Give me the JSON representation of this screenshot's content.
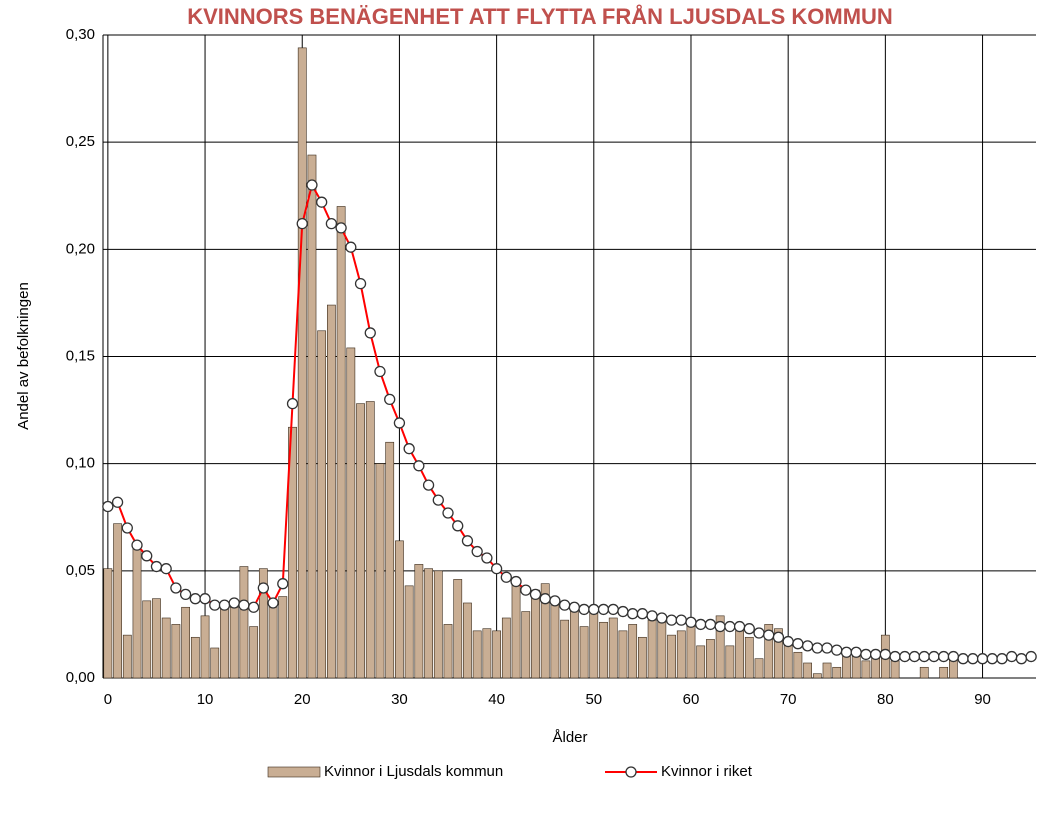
{
  "chart_data": {
    "type": "bar_line",
    "title": "KVINNORS BENÄGENHET ATT FLYTTA FRÅN LJUSDALS KOMMUN",
    "x_label": "Ålder",
    "y_label": "Andel av befolkningen",
    "x": [
      0,
      1,
      2,
      3,
      4,
      5,
      6,
      7,
      8,
      9,
      10,
      11,
      12,
      13,
      14,
      15,
      16,
      17,
      18,
      19,
      20,
      21,
      22,
      23,
      24,
      25,
      26,
      27,
      28,
      29,
      30,
      31,
      32,
      33,
      34,
      35,
      36,
      37,
      38,
      39,
      40,
      41,
      42,
      43,
      44,
      45,
      46,
      47,
      48,
      49,
      50,
      51,
      52,
      53,
      54,
      55,
      56,
      57,
      58,
      59,
      60,
      61,
      62,
      63,
      64,
      65,
      66,
      67,
      68,
      69,
      70,
      71,
      72,
      73,
      74,
      75,
      76,
      77,
      78,
      79,
      80,
      81,
      82,
      83,
      84,
      85,
      86,
      87,
      88,
      89,
      90,
      91,
      92,
      93,
      94,
      95
    ],
    "series": [
      {
        "name": "Kvinnor i Ljusdals kommun",
        "type": "bar",
        "color": "#c9ae94",
        "values": [
          0.051,
          0.072,
          0.02,
          0.062,
          0.036,
          0.037,
          0.028,
          0.025,
          0.033,
          0.019,
          0.029,
          0.014,
          0.033,
          0.033,
          0.052,
          0.024,
          0.051,
          0.035,
          0.038,
          0.117,
          0.294,
          0.244,
          0.162,
          0.174,
          0.22,
          0.154,
          0.128,
          0.129,
          0.1,
          0.11,
          0.064,
          0.043,
          0.053,
          0.051,
          0.05,
          0.025,
          0.046,
          0.035,
          0.022,
          0.023,
          0.022,
          0.028,
          0.044,
          0.031,
          0.041,
          0.044,
          0.036,
          0.027,
          0.033,
          0.024,
          0.031,
          0.026,
          0.028,
          0.022,
          0.025,
          0.019,
          0.027,
          0.027,
          0.02,
          0.022,
          0.027,
          0.015,
          0.018,
          0.029,
          0.015,
          0.022,
          0.019,
          0.009,
          0.025,
          0.023,
          0.016,
          0.012,
          0.007,
          0.002,
          0.007,
          0.005,
          0.01,
          0.01,
          0.008,
          0.01,
          0.02,
          0.008,
          0,
          0,
          0.005,
          0,
          0.005,
          0.011,
          0,
          0,
          0,
          0,
          0,
          0,
          0,
          0
        ]
      },
      {
        "name": "Kvinnor i riket",
        "type": "line",
        "color": "#ff0000",
        "values": [
          0.08,
          0.082,
          0.07,
          0.062,
          0.057,
          0.052,
          0.051,
          0.042,
          0.039,
          0.037,
          0.037,
          0.034,
          0.034,
          0.035,
          0.034,
          0.033,
          0.042,
          0.035,
          0.044,
          0.128,
          0.212,
          0.23,
          0.222,
          0.212,
          0.21,
          0.201,
          0.184,
          0.161,
          0.143,
          0.13,
          0.119,
          0.107,
          0.099,
          0.09,
          0.083,
          0.077,
          0.071,
          0.064,
          0.059,
          0.056,
          0.051,
          0.047,
          0.045,
          0.041,
          0.039,
          0.037,
          0.036,
          0.034,
          0.033,
          0.032,
          0.032,
          0.032,
          0.032,
          0.031,
          0.03,
          0.03,
          0.029,
          0.028,
          0.027,
          0.027,
          0.026,
          0.025,
          0.025,
          0.024,
          0.024,
          0.024,
          0.023,
          0.021,
          0.02,
          0.019,
          0.017,
          0.016,
          0.015,
          0.014,
          0.014,
          0.013,
          0.012,
          0.012,
          0.011,
          0.011,
          0.011,
          0.01,
          0.01,
          0.01,
          0.01,
          0.01,
          0.01,
          0.01,
          0.009,
          0.009,
          0.009,
          0.009,
          0.009,
          0.01,
          0.009,
          0.01
        ]
      }
    ],
    "xlim": [
      -0.5,
      95.5
    ],
    "xticks": [
      0,
      10,
      20,
      30,
      40,
      50,
      60,
      70,
      80,
      90
    ],
    "ylim": [
      0,
      0.3
    ],
    "yticks": [
      {
        "value": 0,
        "label": "0,00"
      },
      {
        "value": 0.05,
        "label": "0,05"
      },
      {
        "value": 0.1,
        "label": "0,10"
      },
      {
        "value": 0.15,
        "label": "0,15"
      },
      {
        "value": 0.2,
        "label": "0,20"
      },
      {
        "value": 0.25,
        "label": "0,25"
      },
      {
        "value": 0.3,
        "label": "0,30"
      }
    ],
    "grid": true,
    "legend": "bottom"
  }
}
